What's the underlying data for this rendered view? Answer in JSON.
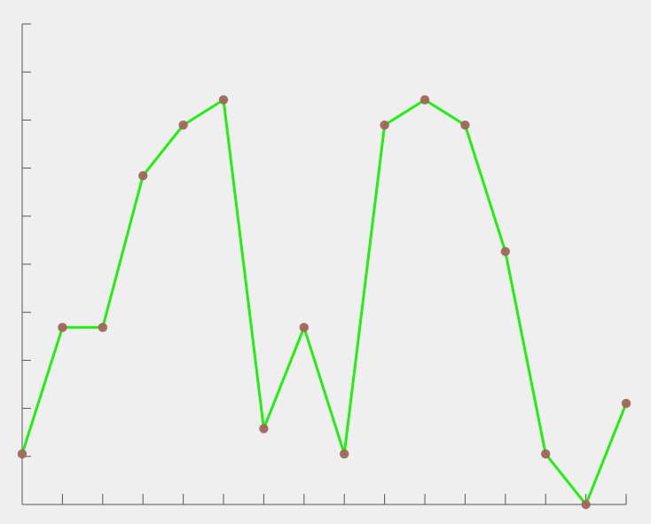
{
  "colors": {
    "background": "#efefef",
    "axis": "#555555",
    "line": "#22ee11",
    "marker": "#a0665a"
  },
  "chart_data": {
    "type": "line",
    "title": "",
    "xlabel": "",
    "ylabel": "",
    "x": [
      0,
      1,
      2,
      3,
      4,
      5,
      6,
      7,
      8,
      9,
      10,
      11,
      12,
      13,
      14,
      15
    ],
    "xlim": [
      0,
      15
    ],
    "ylim": [
      0,
      9.5
    ],
    "grid": false,
    "legend": "none",
    "y_tick_count": 11,
    "series": [
      {
        "values": [
          1.0,
          3.5,
          3.5,
          6.5,
          7.5,
          8.0,
          1.5,
          3.5,
          1.0,
          7.5,
          8.0,
          7.5,
          5.0,
          1.0,
          0.0,
          2.0
        ],
        "markers": true
      }
    ]
  }
}
